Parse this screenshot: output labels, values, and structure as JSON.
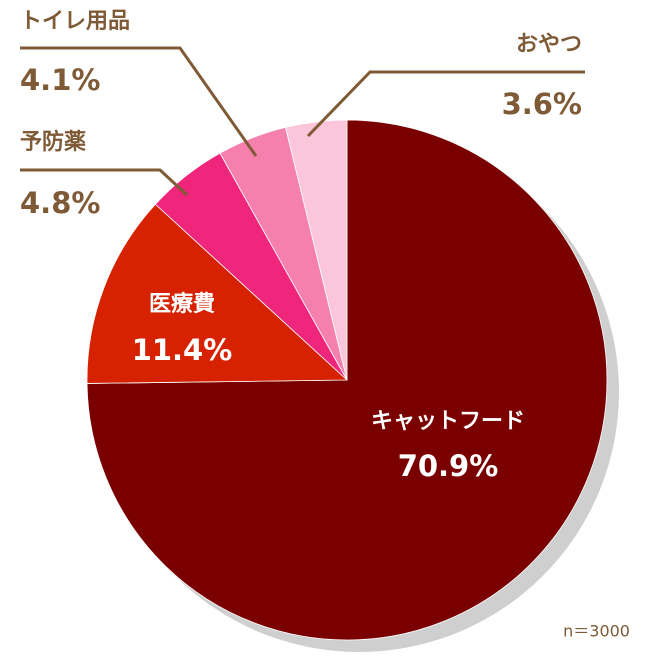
{
  "chart_data": {
    "type": "pie",
    "categories": [
      "キャットフード",
      "医療費",
      "予防薬",
      "トイレ用品",
      "おやつ"
    ],
    "values": [
      70.9,
      11.4,
      4.8,
      4.1,
      3.6
    ],
    "value_labels": [
      "70.9%",
      "11.4%",
      "4.8%",
      "4.1%",
      "3.6%"
    ],
    "colors": [
      "#7a0000",
      "#d62200",
      "#f0267c",
      "#f57fad",
      "#fcc6da"
    ],
    "note": "n＝3000"
  }
}
